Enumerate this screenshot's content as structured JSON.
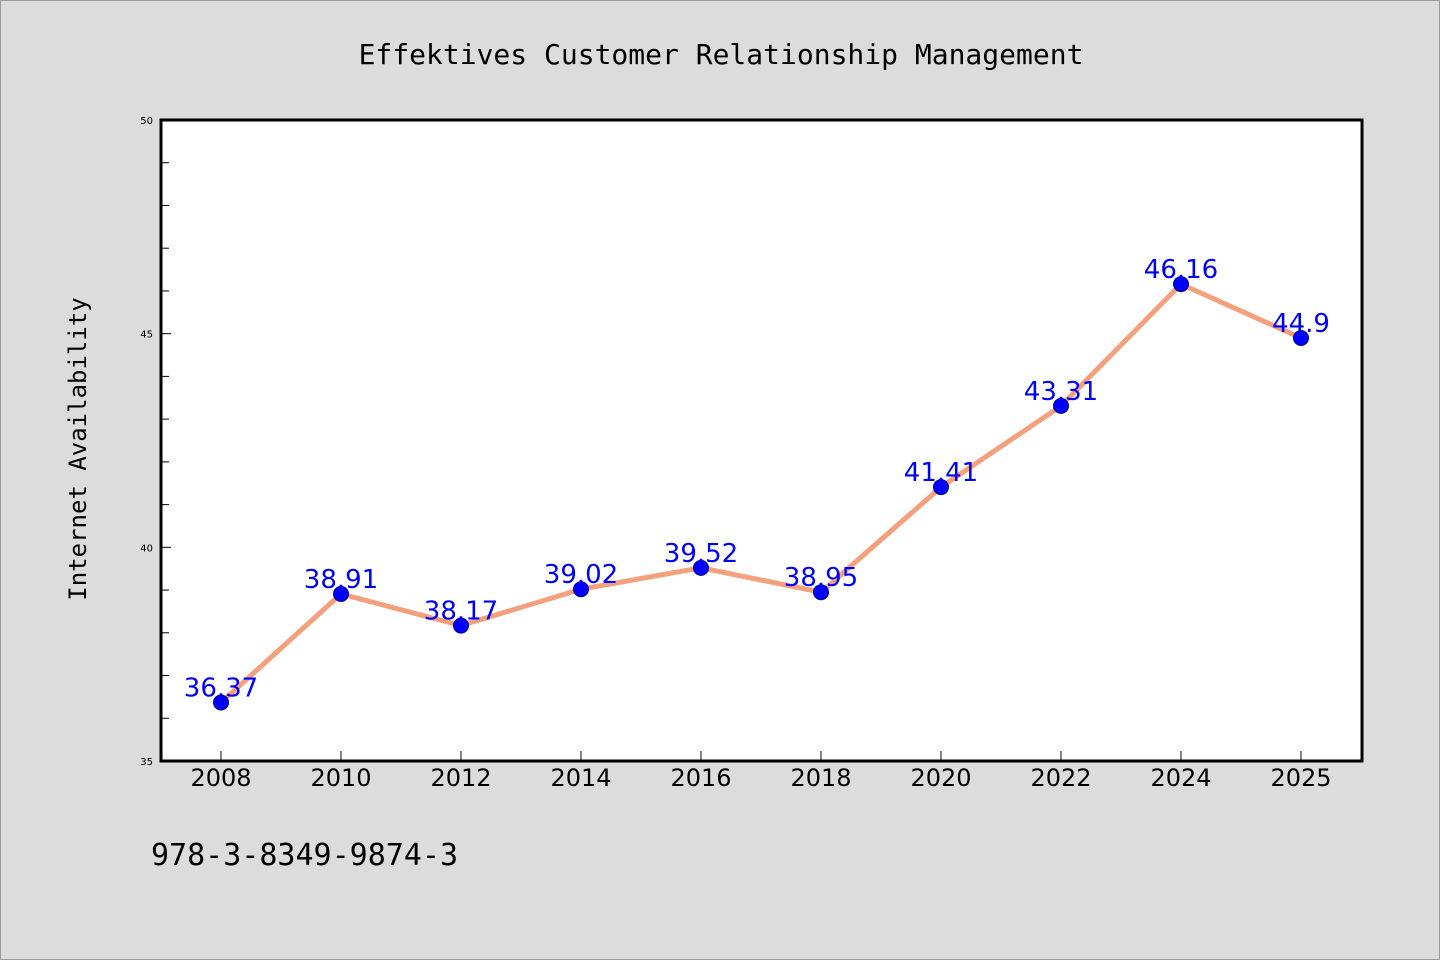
{
  "chart_data": {
    "type": "line",
    "title": "Effektives Customer Relationship Management",
    "xlabel": "",
    "ylabel": "Internet Availability",
    "categories": [
      "2008",
      "2010",
      "2012",
      "2014",
      "2016",
      "2018",
      "2020",
      "2022",
      "2024",
      "2025"
    ],
    "values": [
      36.37,
      38.91,
      38.17,
      39.02,
      39.52,
      38.95,
      41.41,
      43.31,
      46.16,
      44.9
    ],
    "data_labels": [
      "36.37",
      "38.91",
      "38.17",
      "39.02",
      "39.52",
      "38.95",
      "41.41",
      "43.31",
      "46.16",
      "44.9"
    ],
    "ylim": [
      35,
      50
    ],
    "y_ticks": [
      "35",
      "40",
      "45",
      "50"
    ],
    "grid": false,
    "legend": "none",
    "colors": {
      "line": "#f4a07c",
      "marker": "#0000ff",
      "data_label": "#0000ff",
      "background": "#dcdcdc",
      "plot_area": "#ffffff"
    }
  },
  "footer": {
    "isbn": "978-3-8349-9874-3"
  }
}
